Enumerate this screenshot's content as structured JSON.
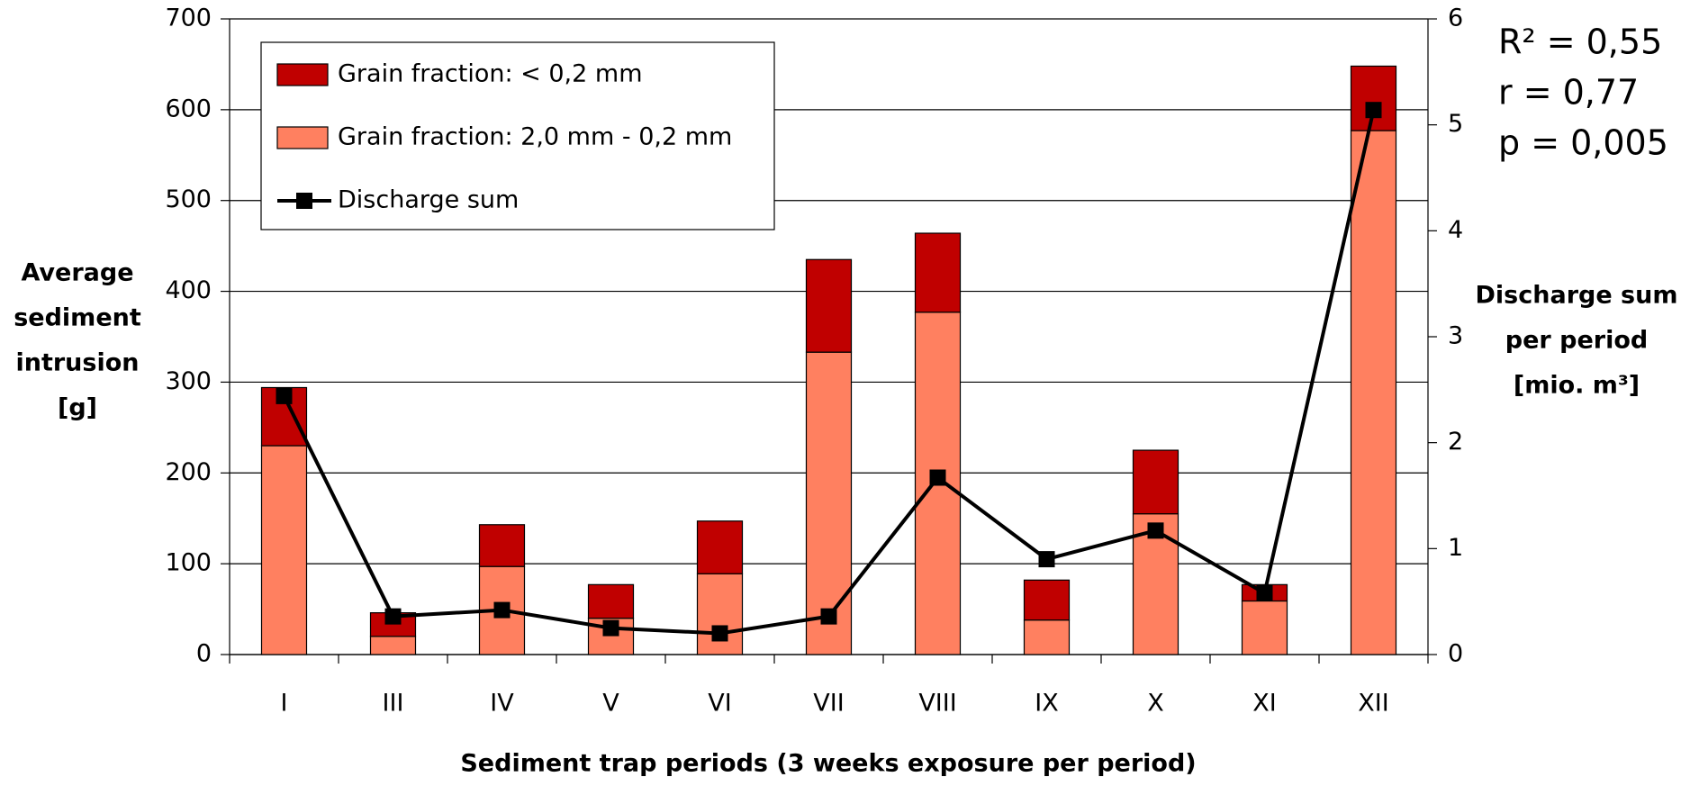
{
  "chart_data": {
    "type": "bar",
    "stacked": true,
    "xlabel": "Sediment trap periods (3 weeks exposure per period)",
    "ylabel": [
      "Average",
      "sediment",
      "intrusion",
      "[g]"
    ],
    "y2label": [
      "Discharge sum",
      "per period",
      "[mio. m³]"
    ],
    "annotations": [
      "R² = 0,55",
      "r = 0,77",
      "p = 0,005"
    ],
    "categories": [
      "I",
      "III",
      "IV",
      "V",
      "VI",
      "VII",
      "VIII",
      "IX",
      "X",
      "XI",
      "XII"
    ],
    "series": [
      {
        "name": "Grain fraction: < 0,2 mm",
        "color": "#c00000",
        "values": [
          64,
          26,
          46,
          37,
          58,
          102,
          87,
          44,
          70,
          18,
          71
        ]
      },
      {
        "name": "Grain fraction: 2,0 mm - 0,2 mm",
        "color": "#ff8060",
        "values": [
          230,
          20,
          97,
          40,
          89,
          333,
          377,
          38,
          155,
          59,
          577
        ]
      },
      {
        "name": "Discharge sum",
        "color": "#000000",
        "axis": "y2",
        "values": [
          2.44,
          0.36,
          0.42,
          0.25,
          0.2,
          0.36,
          1.67,
          0.9,
          1.17,
          0.58,
          5.14
        ]
      }
    ],
    "ylim": [
      0,
      700
    ],
    "yticks": [
      0,
      100,
      200,
      300,
      400,
      500,
      600,
      700
    ],
    "y2lim": [
      0,
      6
    ],
    "y2ticks": [
      0,
      1,
      2,
      3,
      4,
      5,
      6
    ],
    "grid": true,
    "legend": "upper left"
  }
}
